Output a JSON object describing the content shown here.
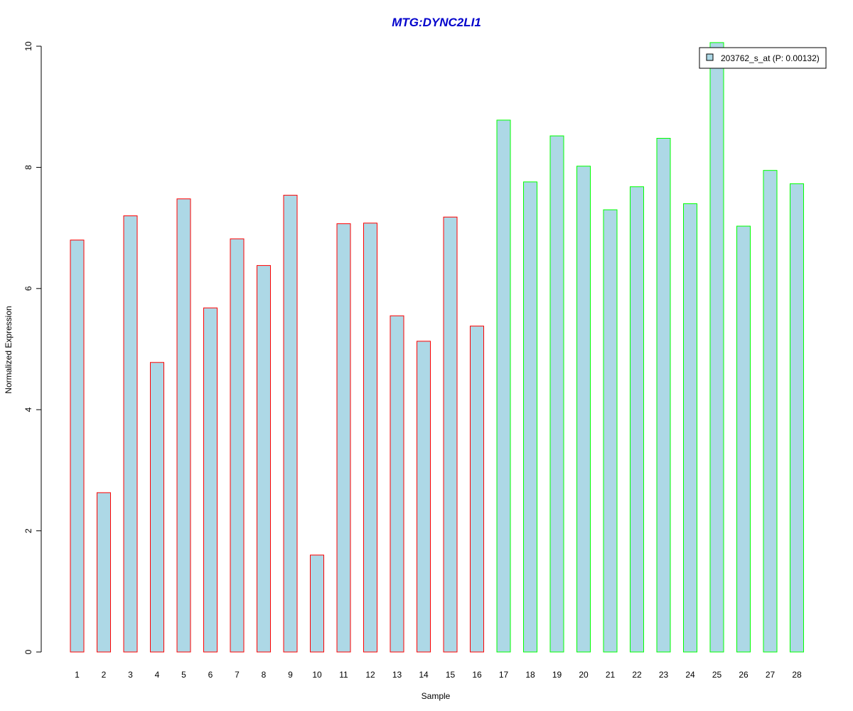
{
  "chart_data": {
    "type": "bar",
    "title": "MTG:DYNC2LI1",
    "xlabel": "Sample",
    "ylabel": "Normalized Expression",
    "ylim": [
      0,
      10
    ],
    "yticks": [
      0,
      2,
      4,
      6,
      8,
      10
    ],
    "grid": false,
    "categories": [
      "1",
      "2",
      "3",
      "4",
      "5",
      "6",
      "7",
      "8",
      "9",
      "10",
      "11",
      "12",
      "13",
      "14",
      "15",
      "16",
      "17",
      "18",
      "19",
      "20",
      "21",
      "22",
      "23",
      "24",
      "25",
      "26",
      "27",
      "28"
    ],
    "series": [
      {
        "name": "203762_s_at (P: 0.00132)",
        "values": [
          6.8,
          2.63,
          7.2,
          4.78,
          7.48,
          5.68,
          6.82,
          6.38,
          7.54,
          1.6,
          7.07,
          7.08,
          5.55,
          5.13,
          7.18,
          5.38,
          8.78,
          7.76,
          8.52,
          8.02,
          7.3,
          7.68,
          8.48,
          7.4,
          10.06,
          7.03,
          7.95,
          7.73
        ]
      }
    ],
    "fill_color": "#add8e6",
    "group_colors": [
      "#ff0000",
      "#ff0000",
      "#ff0000",
      "#ff0000",
      "#ff0000",
      "#ff0000",
      "#ff0000",
      "#ff0000",
      "#ff0000",
      "#ff0000",
      "#ff0000",
      "#ff0000",
      "#ff0000",
      "#ff0000",
      "#ff0000",
      "#ff0000",
      "#00ff00",
      "#00ff00",
      "#00ff00",
      "#00ff00",
      "#00ff00",
      "#00ff00",
      "#00ff00",
      "#00ff00",
      "#00ff00",
      "#00ff00",
      "#00ff00",
      "#00ff00"
    ],
    "title_color": "#0000cc",
    "legend_position": "top-right"
  }
}
